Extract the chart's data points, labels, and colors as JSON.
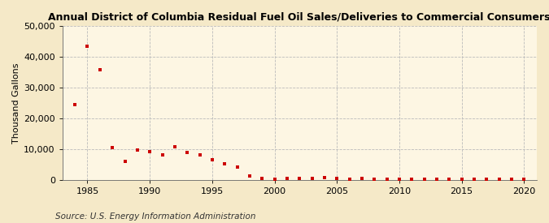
{
  "title": "Annual District of Columbia Residual Fuel Oil Sales/Deliveries to Commercial Consumers",
  "ylabel": "Thousand Gallons",
  "source": "Source: U.S. Energy Information Administration",
  "background_color": "#f5e9c8",
  "plot_background_color": "#fdf6e3",
  "marker_color": "#cc0000",
  "marker": "s",
  "marker_size": 3.5,
  "xlim": [
    1983,
    2021
  ],
  "ylim": [
    0,
    50000
  ],
  "yticks": [
    0,
    10000,
    20000,
    30000,
    40000,
    50000
  ],
  "xticks": [
    1985,
    1990,
    1995,
    2000,
    2005,
    2010,
    2015,
    2020
  ],
  "years": [
    1984,
    1985,
    1986,
    1987,
    1988,
    1989,
    1990,
    1991,
    1992,
    1993,
    1994,
    1995,
    1996,
    1997,
    1998,
    1999,
    2000,
    2001,
    2002,
    2003,
    2004,
    2005,
    2006,
    2007,
    2008,
    2009,
    2010,
    2011,
    2012,
    2013,
    2014,
    2015,
    2016,
    2017,
    2018,
    2019,
    2020
  ],
  "values": [
    24500,
    43500,
    35800,
    10500,
    6000,
    9800,
    9200,
    8200,
    10800,
    9000,
    8000,
    6500,
    5200,
    4200,
    1200,
    500,
    300,
    400,
    500,
    400,
    600,
    400,
    300,
    400,
    300,
    200,
    200,
    300,
    200,
    200,
    200,
    300,
    200,
    200,
    200,
    200,
    200
  ],
  "title_fontsize": 9,
  "ylabel_fontsize": 8,
  "tick_fontsize": 8,
  "source_fontsize": 7.5
}
